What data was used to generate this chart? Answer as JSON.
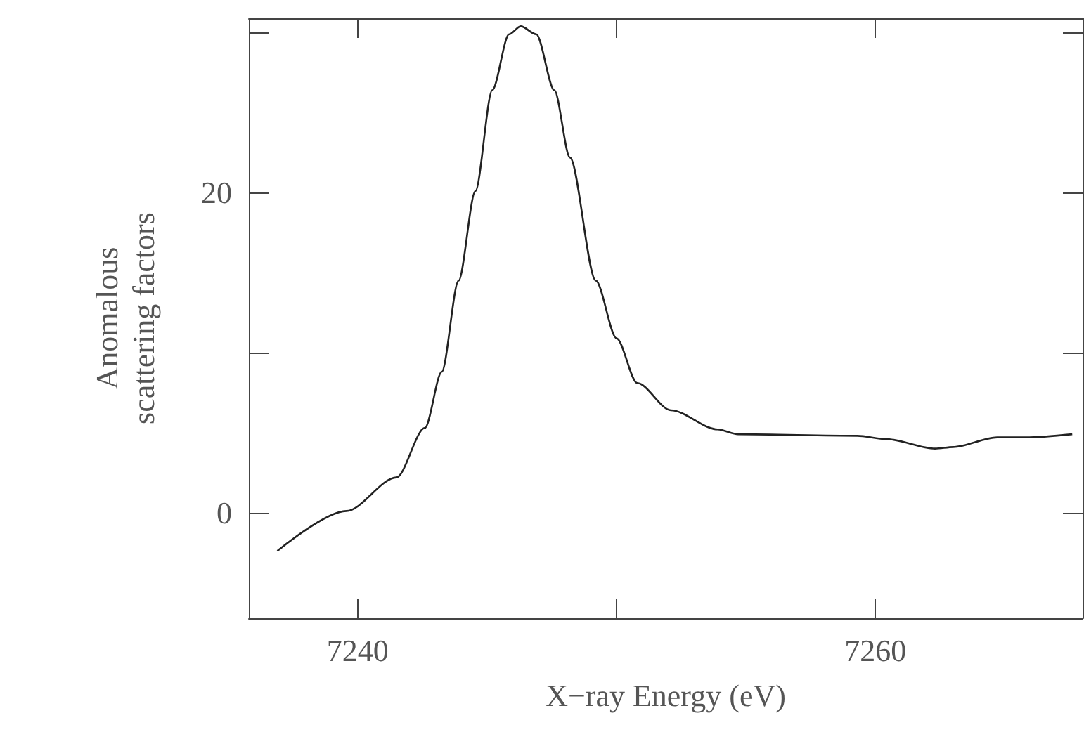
{
  "chart_data": {
    "type": "line",
    "xlabel": "X−ray Energy (eV)",
    "ylabel": "Anomalous\nscattering factors",
    "x": [
      7236.9,
      7239.57,
      7241.5,
      7242.6,
      7243.25,
      7243.9,
      7244.55,
      7245.2,
      7245.85,
      7246.3,
      7246.9,
      7247.6,
      7248.2,
      7249.2,
      7250.0,
      7250.8,
      7252.1,
      7253.9,
      7254.7,
      7259.3,
      7260.4,
      7262.3,
      7263.0,
      7264.7,
      7265.8,
      7267.6
    ],
    "series": [
      {
        "color": "#222222",
        "values": [
          -2.4,
          0.1,
          2.2,
          5.3,
          8.8,
          14.5,
          20.1,
          26.4,
          29.9,
          30.4,
          29.9,
          26.4,
          22.2,
          14.5,
          10.9,
          8.1,
          6.4,
          5.2,
          4.9,
          4.8,
          4.6,
          4.0,
          4.1,
          4.7,
          4.7,
          4.9
        ]
      }
    ],
    "xlim": [
      7235.8,
      7268
    ],
    "ylim": [
      -6.6,
      30.9
    ],
    "xticks": [
      7240,
      {
        "value": 7250,
        "label": null
      },
      7260
    ],
    "yticks": [
      0,
      {
        "value": 10,
        "label": null
      },
      20,
      {
        "value": 30,
        "label": null
      }
    ],
    "grid": false,
    "marker": "none",
    "line_style": "solid"
  }
}
